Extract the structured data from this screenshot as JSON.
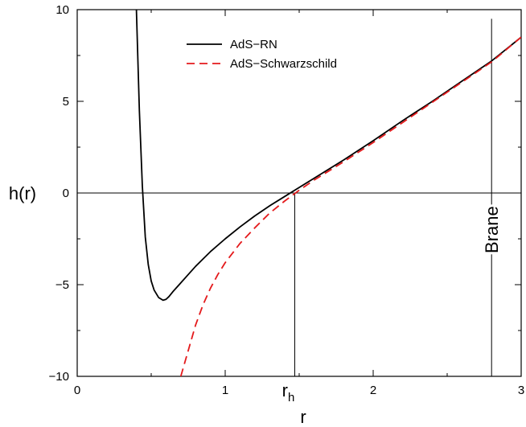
{
  "chart_data": {
    "type": "line",
    "title": "",
    "xlabel": "r",
    "ylabel": "h(r)",
    "xlim": [
      0,
      3
    ],
    "ylim": [
      -10,
      10
    ],
    "x_ticks": [
      "0",
      "1",
      "2",
      "3"
    ],
    "x_tick_values": [
      0,
      1,
      2,
      3
    ],
    "y_ticks": [
      "-10",
      "-5",
      "0",
      "5",
      "10"
    ],
    "y_tick_values": [
      -10,
      -5,
      0,
      5,
      10
    ],
    "grid": false,
    "legend_position": "top-center",
    "series": [
      {
        "name": "AdS−RN",
        "color": "#000000",
        "dash": "solid",
        "x": [
          0.4,
          0.42,
          0.44,
          0.46,
          0.48,
          0.5,
          0.52,
          0.55,
          0.58,
          0.6,
          0.62,
          0.65,
          0.7,
          0.75,
          0.8,
          0.9,
          1.0,
          1.1,
          1.2,
          1.3,
          1.4,
          1.5,
          1.6,
          1.8,
          2.0,
          2.2,
          2.4,
          2.6,
          2.8,
          3.0
        ],
        "y": [
          10.0,
          4.5,
          0.4,
          -2.4,
          -3.9,
          -4.8,
          -5.3,
          -5.7,
          -5.85,
          -5.8,
          -5.65,
          -5.35,
          -4.9,
          -4.45,
          -4.0,
          -3.2,
          -2.5,
          -1.85,
          -1.25,
          -0.7,
          -0.2,
          0.3,
          0.8,
          1.8,
          2.85,
          3.95,
          5.0,
          6.1,
          7.2,
          8.5
        ]
      },
      {
        "name": "AdS−Schwarzschild",
        "color": "#e41a1c",
        "dash": "dashed",
        "x": [
          0.7,
          0.75,
          0.8,
          0.85,
          0.9,
          0.95,
          1.0,
          1.1,
          1.2,
          1.3,
          1.4,
          1.5,
          1.6,
          1.8,
          2.0,
          2.2,
          2.4,
          2.6,
          2.8,
          3.0
        ],
        "y": [
          -10.0,
          -8.6,
          -7.2,
          -6.1,
          -5.2,
          -4.45,
          -3.8,
          -2.75,
          -1.9,
          -1.1,
          -0.45,
          0.15,
          0.7,
          1.7,
          2.75,
          3.85,
          4.95,
          6.05,
          7.15,
          8.5
        ]
      }
    ],
    "reference_lines": [
      {
        "orientation": "horizontal",
        "y": 0
      },
      {
        "orientation": "vertical",
        "x": 1.47,
        "label": "r",
        "label_sub": "h"
      },
      {
        "orientation": "vertical",
        "x": 2.8,
        "label": "Brane"
      }
    ]
  }
}
